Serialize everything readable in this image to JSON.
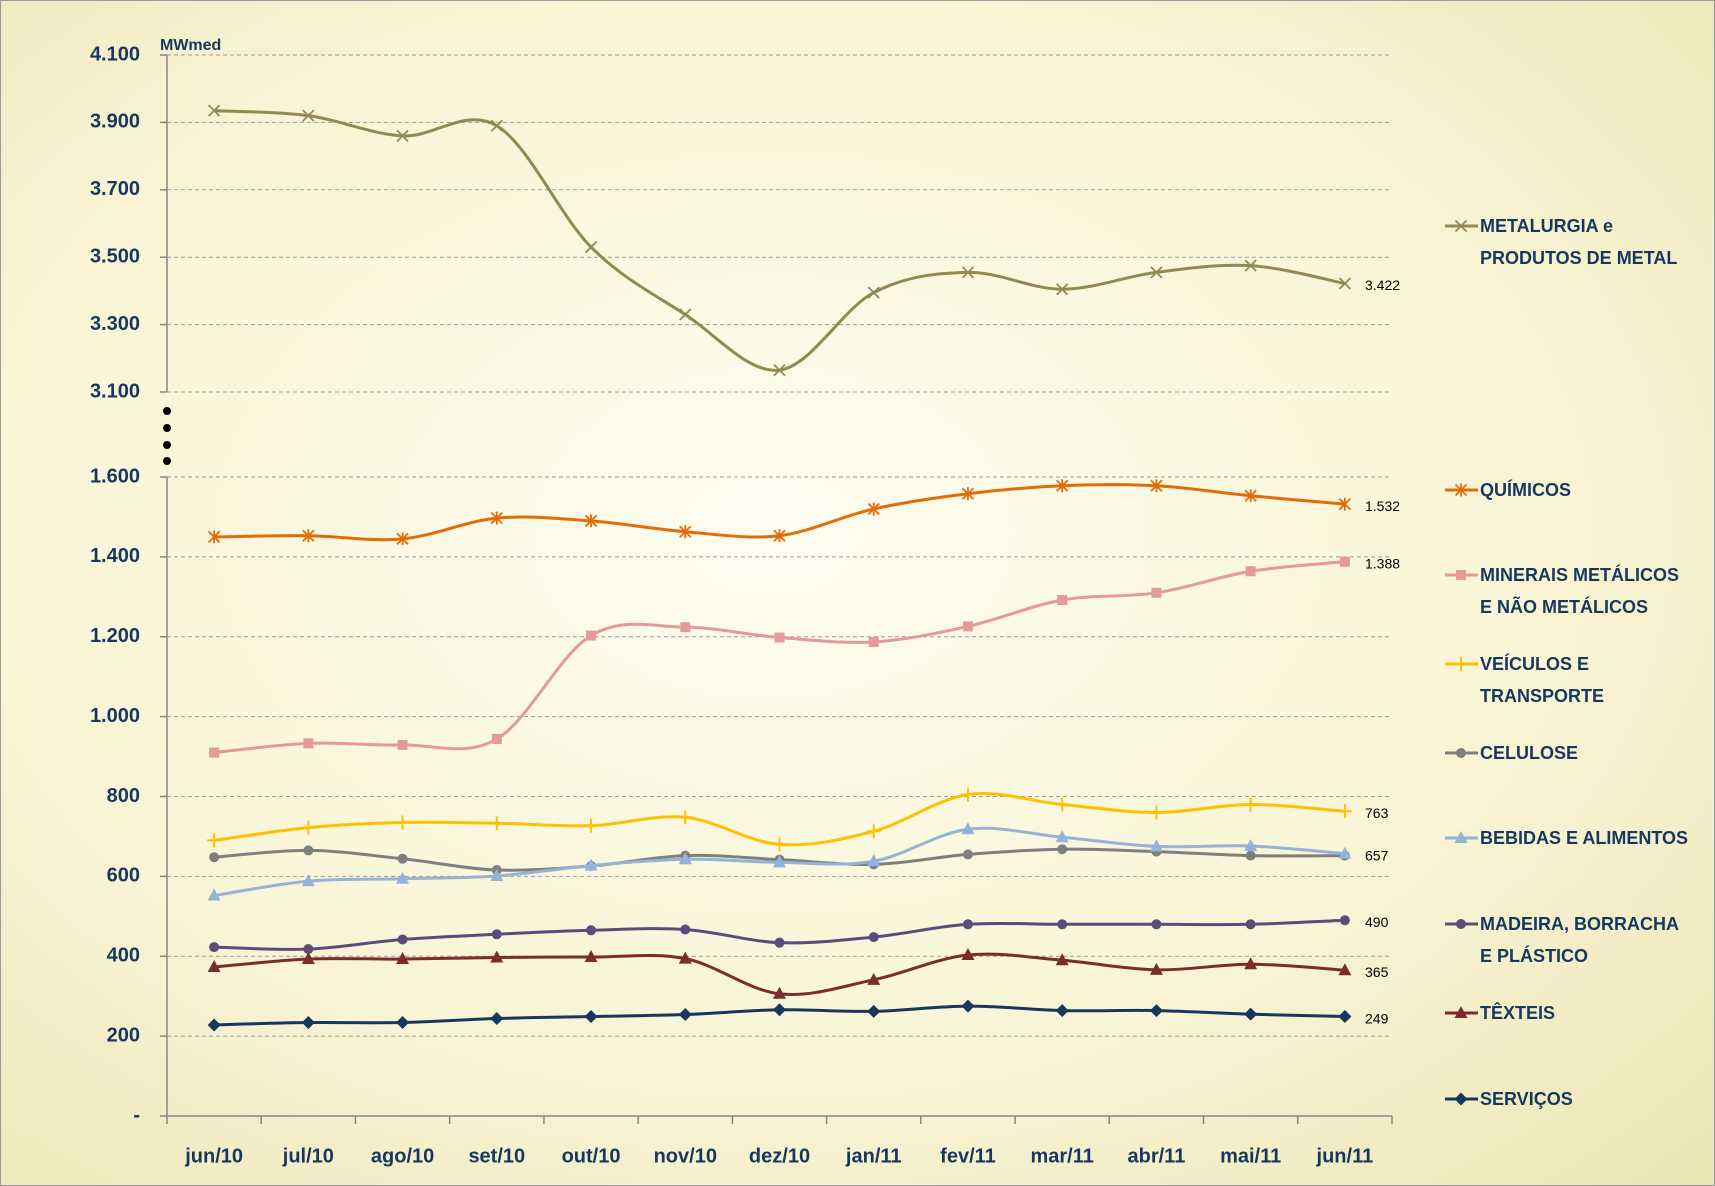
{
  "chart_data": {
    "type": "line",
    "y_label": "MWmed",
    "categories": [
      "jun/10",
      "jul/10",
      "ago/10",
      "set/10",
      "out/10",
      "nov/10",
      "dez/10",
      "jan/11",
      "fev/11",
      "mar/11",
      "abr/11",
      "mai/11",
      "jun/11"
    ],
    "ylim": [
      0,
      4100
    ],
    "axis_break": [
      1600,
      3100
    ],
    "yticks": [
      {
        "value": 0,
        "label": "-"
      },
      200,
      400,
      600,
      800,
      {
        "value": 1000,
        "label": "1.000"
      },
      {
        "value": 1200,
        "label": "1.200"
      },
      {
        "value": 1400,
        "label": "1.400"
      },
      {
        "value": 1600,
        "label": "1.600"
      },
      {
        "value": 3100,
        "label": "3.100"
      },
      {
        "value": 3300,
        "label": "3.300"
      },
      {
        "value": 3500,
        "label": "3.500"
      },
      {
        "value": 3700,
        "label": "3.700"
      },
      {
        "value": 3900,
        "label": "3.900"
      },
      {
        "value": 4100,
        "label": "4.100"
      }
    ],
    "grid": true,
    "legend": "right",
    "series": [
      {
        "name": "METALURGIA e PRODUTOS DE METAL",
        "color": "#938953",
        "marker": "x",
        "values": [
          3935,
          3920,
          3860,
          3890,
          3530,
          3330,
          3165,
          3395,
          3455,
          3405,
          3455,
          3475,
          3422
        ],
        "value_labels": [
          null,
          null,
          null,
          null,
          null,
          null,
          null,
          null,
          null,
          null,
          null,
          null,
          "3.422"
        ]
      },
      {
        "name": "QUÍMICOS",
        "color": "#e36c09",
        "marker": "star",
        "values": [
          1450,
          1453,
          1445,
          1497,
          1490,
          1463,
          1453,
          1520,
          1558,
          1578,
          1578,
          1553,
          1532
        ],
        "value_labels": [
          null,
          null,
          null,
          null,
          null,
          null,
          null,
          null,
          null,
          null,
          null,
          null,
          "1.532"
        ]
      },
      {
        "name": "MINERAIS METÁLICOS E NÃO METÁLICOS",
        "color": "#e6999a",
        "marker": "square",
        "values": [
          910,
          933,
          929,
          944,
          1203,
          1224,
          1198,
          1187,
          1226,
          1292,
          1310,
          1364,
          1388
        ],
        "value_labels": [
          null,
          null,
          null,
          null,
          null,
          null,
          null,
          null,
          null,
          null,
          null,
          null,
          "1.388"
        ]
      },
      {
        "name": "VEÍCULOS E TRANSPORTE",
        "color": "#ffc000",
        "marker": "plus",
        "values": [
          690,
          722,
          735,
          733,
          727,
          748,
          680,
          713,
          805,
          780,
          760,
          780,
          763
        ],
        "show_last_label": true
      },
      {
        "name": "CELULOSE",
        "color": "#7f7f7f",
        "marker": "circle",
        "values": [
          648,
          665,
          644,
          616,
          626,
          652,
          642,
          630,
          655,
          668,
          662,
          652,
          652
        ]
      },
      {
        "name": "BEBIDAS E ALIMENTOS",
        "color": "#95b3d7",
        "marker": "triangle",
        "values": [
          552,
          588,
          594,
          601,
          627,
          643,
          635,
          638,
          718,
          698,
          675,
          676,
          657
        ],
        "show_last_label": true
      },
      {
        "name": "MADEIRA, BORRACHA E PLÁSTICO",
        "color": "#604a7b",
        "marker": "circle",
        "values": [
          423,
          418,
          442,
          455,
          465,
          467,
          434,
          448,
          480,
          480,
          480,
          480,
          490
        ],
        "show_last_label": true
      },
      {
        "name": "TÊXTEIS",
        "color": "#7b2c2c",
        "marker": "triangle",
        "values": [
          373,
          393,
          393,
          397,
          398,
          394,
          306,
          341,
          403,
          390,
          366,
          380,
          365
        ],
        "show_last_label": true
      },
      {
        "name": "SERVIÇOS",
        "color": "#17375e",
        "marker": "diamond",
        "values": [
          228,
          234,
          234,
          244,
          249,
          254,
          266,
          262,
          275,
          264,
          264,
          255,
          249
        ],
        "show_last_label": true
      }
    ]
  }
}
